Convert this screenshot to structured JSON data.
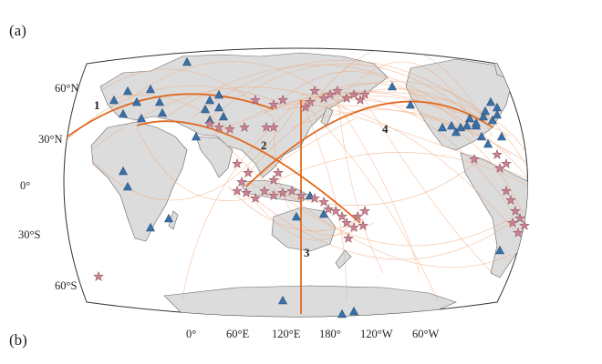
{
  "panels": {
    "a": "(a)",
    "b": "(b)"
  },
  "latitude_labels": [
    "60°N",
    "30°N",
    "0°",
    "30°S",
    "60°S"
  ],
  "longitude_labels": [
    "0°",
    "60°E",
    "120°E",
    "180°",
    "120°W",
    "60°W"
  ],
  "routes": [
    {
      "id": "1",
      "label": "1"
    },
    {
      "id": "2",
      "label": "2"
    },
    {
      "id": "3",
      "label": "3"
    },
    {
      "id": "4",
      "label": "4"
    }
  ],
  "colors": {
    "land": "#dcdcdc",
    "land_edge": "#555555",
    "ocean": "#ffffff",
    "arc": "#f0a575",
    "highlight_arc": "#e06a22",
    "triangle_marker": "#3a70a8",
    "star_marker": "#c9808f"
  },
  "legend": {
    "triangle": "triangle-marker",
    "star": "star-marker"
  }
}
